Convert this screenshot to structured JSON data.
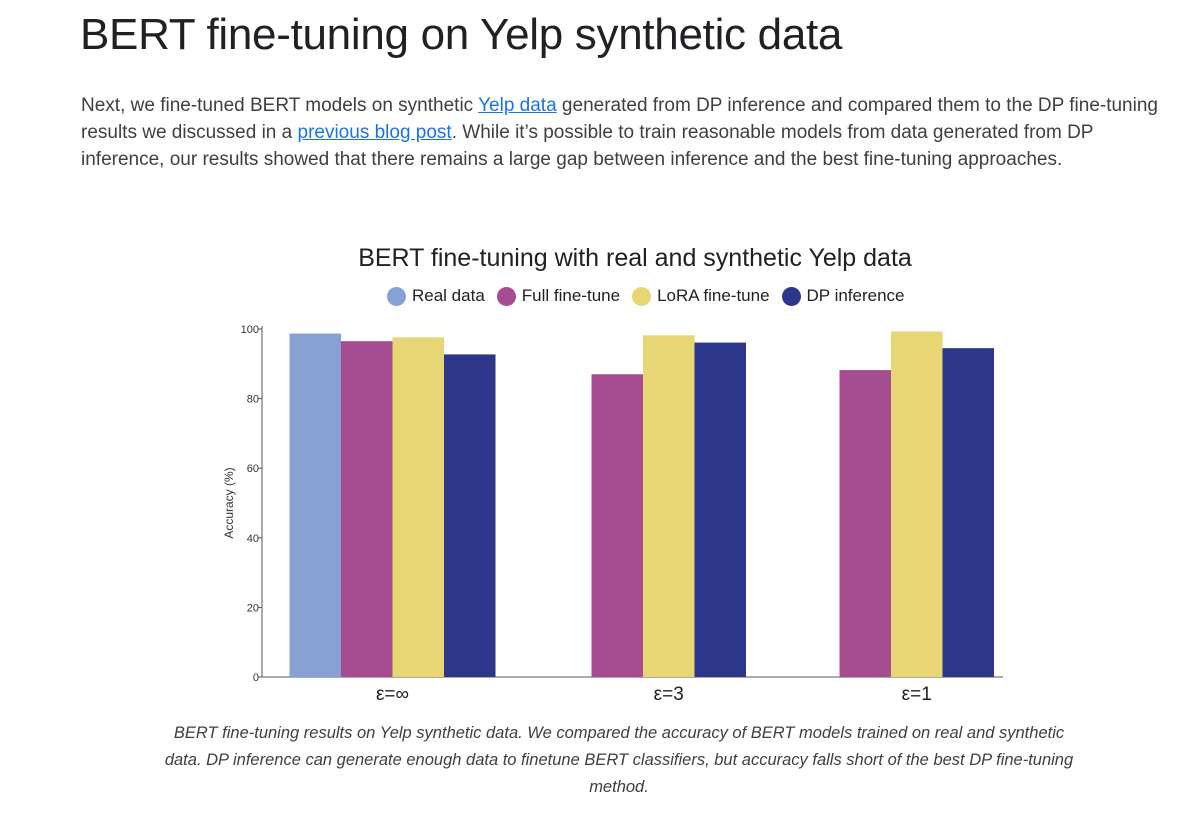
{
  "article": {
    "title": "BERT fine-tuning on Yelp synthetic data",
    "paragraph": {
      "part1": "Next, we fine-tuned BERT models on synthetic ",
      "link1": "Yelp data",
      "part2": " generated from DP inference and compared them to the DP fine-tuning results we discussed in a ",
      "link2": "previous blog post",
      "part3": ". While it’s possible to train reasonable models from data generated from DP inference, our results showed that there remains a large gap between inference and the best fine-tuning approaches."
    },
    "caption": "BERT fine-tuning results on Yelp synthetic data. We compared the accuracy of BERT models trained on real and synthetic data. DP inference can generate enough data to finetune BERT classifiers, but accuracy falls short of the best DP fine-tuning method.",
    "link_color": "#1a73e8"
  },
  "chart_data": {
    "type": "bar",
    "title": "BERT fine-tuning with real and synthetic Yelp data",
    "ylabel": "Accuracy (%)",
    "xlabel": "",
    "ylim": [
      0,
      100
    ],
    "yticks": [
      0,
      20,
      40,
      60,
      80,
      100
    ],
    "categories": [
      "ε=∞",
      "ε=3",
      "ε=1"
    ],
    "legend_position": "top-center",
    "grid": false,
    "series": [
      {
        "name": "Real data",
        "color": "#87a1d4",
        "values": [
          98.7,
          null,
          null
        ]
      },
      {
        "name": "Full fine-tune",
        "color": "#a64d91",
        "values": [
          96.5,
          87.0,
          88.2
        ]
      },
      {
        "name": "LoRA fine-tune",
        "color": "#e8d573",
        "values": [
          97.6,
          98.2,
          99.3
        ]
      },
      {
        "name": "DP inference",
        "color": "#2c368a",
        "values": [
          92.7,
          96.1,
          94.5
        ]
      }
    ]
  }
}
